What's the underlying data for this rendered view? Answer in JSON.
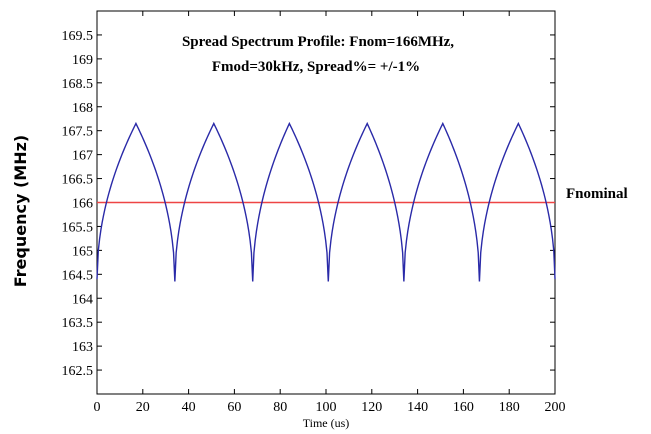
{
  "chart_data": {
    "type": "line",
    "title_lines": [
      "Spread Spectrum Profile: Fnom=166MHz,",
      "Fmod=30kHz, Spread%= +/-1%"
    ],
    "xlabel": "Time (us)",
    "ylabel": "Frequency (MHz)",
    "xlim": [
      0,
      200
    ],
    "ylim": [
      162,
      170
    ],
    "xticks": [
      0,
      20,
      40,
      60,
      80,
      100,
      120,
      140,
      160,
      180,
      200
    ],
    "yticks": [
      162.5,
      163,
      163.5,
      164,
      164.5,
      165,
      165.5,
      166,
      166.5,
      167,
      167.5,
      168,
      168.5,
      169,
      169.5
    ],
    "grid": false,
    "annotation": "Fnominal",
    "series": [
      {
        "color": "#2a2aa8",
        "x": [
          0,
          17,
          34,
          51,
          68,
          84,
          101,
          118,
          134,
          151,
          167,
          184,
          200
        ],
        "y": [
          164.4,
          167.65,
          164.35,
          167.65,
          164.35,
          167.65,
          164.35,
          167.65,
          164.35,
          167.65,
          164.35,
          167.65,
          164.4
        ]
      },
      {
        "color": "#ee4444",
        "x": [
          0,
          200
        ],
        "y": [
          166,
          166
        ]
      }
    ]
  }
}
